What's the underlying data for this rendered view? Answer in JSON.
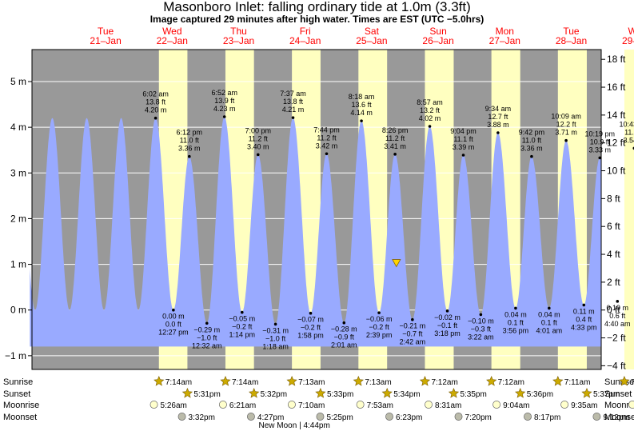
{
  "header": {
    "title": "Masonboro Inlet: falling  ordinary tide at 1.0m (3.3ft)",
    "subtitle": "Image captured 29 minutes after high water. Times are EST (UTC −5.0hrs)"
  },
  "colors": {
    "night": "#999999",
    "day": "#ffffc0",
    "water": "#99aaff",
    "date_label": "#ff0000",
    "grid": "#ffffff",
    "now_marker": "#ffd400",
    "sun": "#ccaa00",
    "moonrise": "#ffffcc",
    "moonset": "#bbbbaa"
  },
  "chart_data": {
    "type": "area",
    "title": "Masonboro Inlet: falling  ordinary tide at 1.0m (3.3ft)",
    "left_axis": {
      "unit": "m",
      "ylim": [
        -1.3,
        5.7
      ],
      "ticks": [
        -1,
        0,
        1,
        2,
        3,
        4,
        5
      ],
      "tick_labels": [
        "−1 m",
        "0 m",
        "1 m",
        "2 m",
        "3 m",
        "4 m",
        "5 m"
      ]
    },
    "right_axis": {
      "unit": "ft",
      "ticks": [
        -4,
        -2,
        0,
        2,
        4,
        6,
        8,
        10,
        12,
        14,
        16,
        18
      ],
      "tick_labels": [
        "−4 ft",
        "−2 ft",
        "0 ft",
        "2 ft",
        "4 ft",
        "6 ft",
        "8 ft",
        "10 ft",
        "12 ft",
        "14 ft",
        "16 ft",
        "18 ft"
      ]
    },
    "x_range_days": [
      -0.64,
      7.95
    ],
    "grid": true,
    "current_level_m": 1.0,
    "days": [
      {
        "weekday": "Tue",
        "date": "21–Jan"
      },
      {
        "weekday": "Wed",
        "date": "22–Jan"
      },
      {
        "weekday": "Thu",
        "date": "23–Jan"
      },
      {
        "weekday": "Fri",
        "date": "24–Jan"
      },
      {
        "weekday": "Sat",
        "date": "25–Jan"
      },
      {
        "weekday": "Sun",
        "date": "26–Jan"
      },
      {
        "weekday": "Mon",
        "date": "27–Jan"
      },
      {
        "weekday": "Tue",
        "date": "28–Jan"
      },
      {
        "weekday": "Wed",
        "date": "29–Jan"
      }
    ],
    "high_tides": [
      {
        "day": 1,
        "time": "6:02 am",
        "ft": "13.8 ft",
        "m": "4.20 m",
        "value_m": 4.2
      },
      {
        "day": 1,
        "time": "6:12 pm",
        "ft": "11.0 ft",
        "m": "3.36 m",
        "value_m": 3.36
      },
      {
        "day": 2,
        "time": "6:52 am",
        "ft": "13.9 ft",
        "m": "4.23 m",
        "value_m": 4.23
      },
      {
        "day": 2,
        "time": "7:00 pm",
        "ft": "11.2 ft",
        "m": "3.40 m",
        "value_m": 3.4
      },
      {
        "day": 3,
        "time": "7:37 am",
        "ft": "13.8 ft",
        "m": "4.21 m",
        "value_m": 4.21
      },
      {
        "day": 3,
        "time": "7:44 pm",
        "ft": "11.2 ft",
        "m": "3.42 m",
        "value_m": 3.42
      },
      {
        "day": 4,
        "time": "8:18 am",
        "ft": "13.6 ft",
        "m": "4.14 m",
        "value_m": 4.14
      },
      {
        "day": 4,
        "time": "8:26 pm",
        "ft": "11.2 ft",
        "m": "3.41 m",
        "value_m": 3.41
      },
      {
        "day": 5,
        "time": "8:57 am",
        "ft": "13.2 ft",
        "m": "4.02 m",
        "value_m": 4.02
      },
      {
        "day": 5,
        "time": "9:04 pm",
        "ft": "11.1 ft",
        "m": "3.39 m",
        "value_m": 3.39
      },
      {
        "day": 6,
        "time": "9:34 am",
        "ft": "12.7 ft",
        "m": "3.88 m",
        "value_m": 3.88
      },
      {
        "day": 6,
        "time": "9:42 pm",
        "ft": "11.0 ft",
        "m": "3.36 m",
        "value_m": 3.36
      },
      {
        "day": 7,
        "time": "10:09 am",
        "ft": "12.2 ft",
        "m": "3.71 m",
        "value_m": 3.71
      },
      {
        "day": 7,
        "time": "10:19 pm",
        "ft": "10.9 ft",
        "m": "3.33 m",
        "value_m": 3.33
      },
      {
        "day": 8,
        "time": "10:43 am",
        "ft": "11.6 ft",
        "m": "3.54 m",
        "value_m": 3.54
      }
    ],
    "low_tides": [
      {
        "day": 1,
        "time": "12:27 pm",
        "ft": "0.0 ft",
        "m": "0.00 m",
        "value_m": 0.0
      },
      {
        "day": 2,
        "time": "12:32 am",
        "ft": "−1.0 ft",
        "m": "−0.29 m",
        "value_m": -0.29
      },
      {
        "day": 2,
        "time": "1:14 pm",
        "ft": "−0.2 ft",
        "m": "−0.05 m",
        "value_m": -0.05
      },
      {
        "day": 3,
        "time": "1:18 am",
        "ft": "−1.0 ft",
        "m": "−0.31 m",
        "value_m": -0.31
      },
      {
        "day": 3,
        "time": "1:58 pm",
        "ft": "−0.2 ft",
        "m": "−0.07 m",
        "value_m": -0.07
      },
      {
        "day": 4,
        "time": "2:01 am",
        "ft": "−0.9 ft",
        "m": "−0.28 m",
        "value_m": -0.28
      },
      {
        "day": 4,
        "time": "2:39 pm",
        "ft": "−0.2 ft",
        "m": "−0.06 m",
        "value_m": -0.06
      },
      {
        "day": 5,
        "time": "2:42 am",
        "ft": "−0.7 ft",
        "m": "−0.21 m",
        "value_m": -0.21
      },
      {
        "day": 5,
        "time": "3:18 pm",
        "ft": "−0.1 ft",
        "m": "−0.02 m",
        "value_m": -0.02
      },
      {
        "day": 6,
        "time": "3:22 am",
        "ft": "−0.3 ft",
        "m": "−0.10 m",
        "value_m": -0.1
      },
      {
        "day": 6,
        "time": "3:56 pm",
        "ft": "0.1 ft",
        "m": "0.04 m",
        "value_m": 0.04
      },
      {
        "day": 7,
        "time": "4:01 am",
        "ft": "0.1 ft",
        "m": "0.04 m",
        "value_m": 0.04
      },
      {
        "day": 7,
        "time": "4:33 pm",
        "ft": "0.4 ft",
        "m": "0.11 m",
        "value_m": 0.11
      },
      {
        "day": 8,
        "time": "4:40 am",
        "ft": "0.6 ft",
        "m": "0.19 m",
        "value_m": 0.19
      },
      {
        "day": 8,
        "time": "5:11 pm",
        "ft": "0.6 ft",
        "m": "0.19 m",
        "value_m": 0.19
      }
    ]
  },
  "almanac": {
    "row_labels": [
      "Sunrise",
      "Sunset",
      "Moonrise",
      "Moonset"
    ],
    "sunrise": [
      {
        "day": 1,
        "time": "7:14am"
      },
      {
        "day": 2,
        "time": "7:14am"
      },
      {
        "day": 3,
        "time": "7:13am"
      },
      {
        "day": 4,
        "time": "7:13am"
      },
      {
        "day": 5,
        "time": "7:12am"
      },
      {
        "day": 6,
        "time": "7:12am"
      },
      {
        "day": 7,
        "time": "7:11am"
      },
      {
        "day": 8,
        "time": "7:10am"
      }
    ],
    "sunset": [
      {
        "day": 1,
        "time": "5:31pm"
      },
      {
        "day": 2,
        "time": "5:32pm"
      },
      {
        "day": 3,
        "time": "5:33pm"
      },
      {
        "day": 4,
        "time": "5:34pm"
      },
      {
        "day": 5,
        "time": "5:35pm"
      },
      {
        "day": 6,
        "time": "5:36pm"
      },
      {
        "day": 7,
        "time": "5:37pm"
      },
      {
        "day": 8,
        "time": "5:38pm"
      }
    ],
    "moonrise": [
      {
        "day": 1,
        "time": "5:26am"
      },
      {
        "day": 2,
        "time": "6:21am"
      },
      {
        "day": 3,
        "time": "7:10am"
      },
      {
        "day": 4,
        "time": "7:53am"
      },
      {
        "day": 5,
        "time": "8:31am"
      },
      {
        "day": 6,
        "time": "9:04am"
      },
      {
        "day": 7,
        "time": "9:35am"
      },
      {
        "day": 8,
        "time": "10:03am"
      }
    ],
    "moonset": [
      {
        "day": 1,
        "time": "3:32pm"
      },
      {
        "day": 2,
        "time": "4:27pm"
      },
      {
        "day": 3,
        "time": "5:25pm"
      },
      {
        "day": 4,
        "time": "6:23pm"
      },
      {
        "day": 5,
        "time": "7:20pm"
      },
      {
        "day": 6,
        "time": "8:17pm"
      },
      {
        "day": 7,
        "time": "9:12pm"
      }
    ],
    "moon_phase": "New Moon | 4:44pm"
  }
}
